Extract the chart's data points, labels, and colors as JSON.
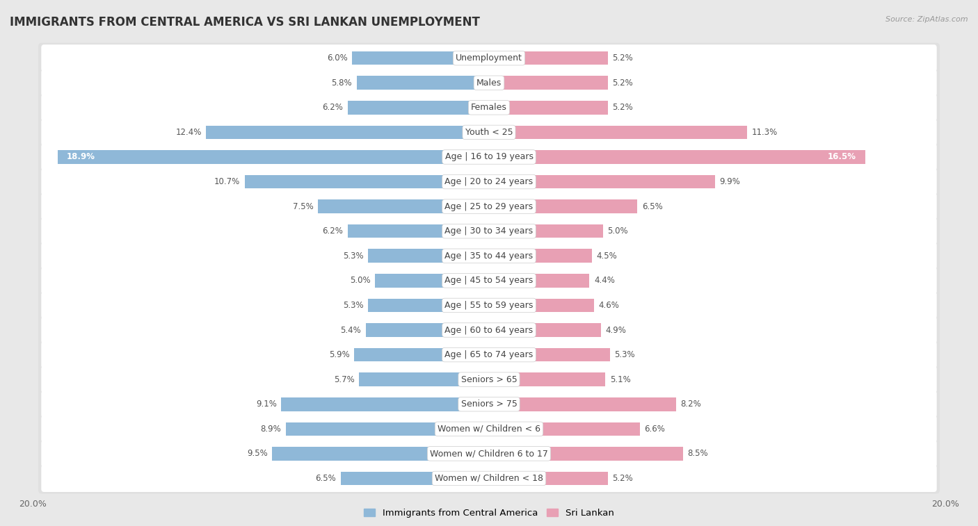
{
  "title": "IMMIGRANTS FROM CENTRAL AMERICA VS SRI LANKAN UNEMPLOYMENT",
  "source": "Source: ZipAtlas.com",
  "categories": [
    "Unemployment",
    "Males",
    "Females",
    "Youth < 25",
    "Age | 16 to 19 years",
    "Age | 20 to 24 years",
    "Age | 25 to 29 years",
    "Age | 30 to 34 years",
    "Age | 35 to 44 years",
    "Age | 45 to 54 years",
    "Age | 55 to 59 years",
    "Age | 60 to 64 years",
    "Age | 65 to 74 years",
    "Seniors > 65",
    "Seniors > 75",
    "Women w/ Children < 6",
    "Women w/ Children 6 to 17",
    "Women w/ Children < 18"
  ],
  "left_values": [
    6.0,
    5.8,
    6.2,
    12.4,
    18.9,
    10.7,
    7.5,
    6.2,
    5.3,
    5.0,
    5.3,
    5.4,
    5.9,
    5.7,
    9.1,
    8.9,
    9.5,
    6.5
  ],
  "right_values": [
    5.2,
    5.2,
    5.2,
    11.3,
    16.5,
    9.9,
    6.5,
    5.0,
    4.5,
    4.4,
    4.6,
    4.9,
    5.3,
    5.1,
    8.2,
    6.6,
    8.5,
    5.2
  ],
  "left_color": "#8fb8d8",
  "right_color": "#e8a0b4",
  "left_label": "Immigrants from Central America",
  "right_label": "Sri Lankan",
  "axis_max": 20.0,
  "bg_color": "#e8e8e8",
  "row_bg_color": "#f5f5f5",
  "row_bg_alt": "#ebebeb",
  "label_bg_color": "#ffffff",
  "title_fontsize": 12,
  "label_fontsize": 9,
  "value_fontsize": 8.5,
  "cat_fontsize": 9
}
